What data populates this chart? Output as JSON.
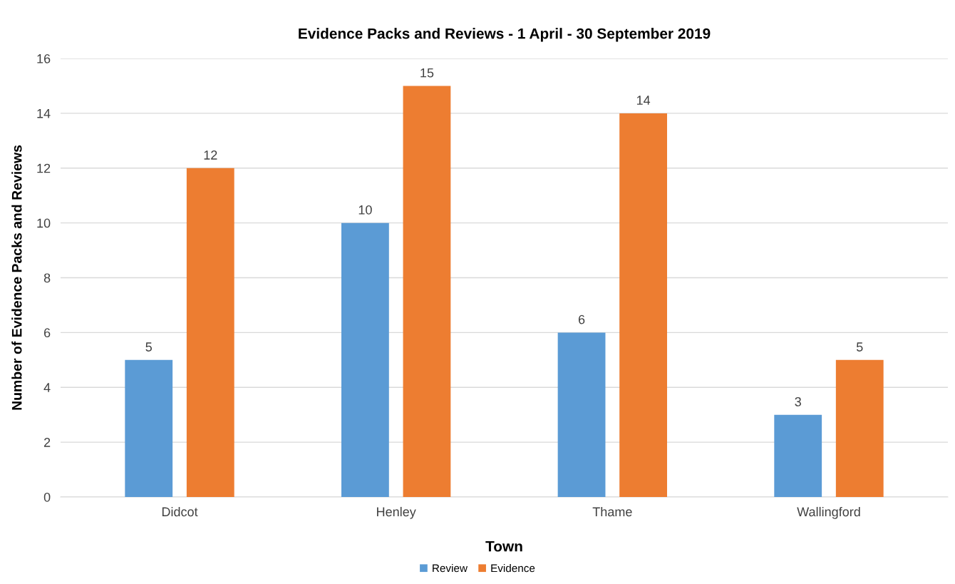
{
  "chart_data": {
    "type": "bar",
    "title": "Evidence Packs and Reviews - 1 April - 30 September 2019",
    "xlabel": "Town",
    "ylabel": "Number of Evidence Packs and Reviews",
    "categories": [
      "Didcot",
      "Henley",
      "Thame",
      "Wallingford"
    ],
    "series": [
      {
        "name": "Review",
        "color": "#5b9bd5",
        "values": [
          5,
          10,
          6,
          3
        ]
      },
      {
        "name": "Evidence",
        "color": "#ed7d31",
        "values": [
          12,
          15,
          14,
          5
        ]
      }
    ],
    "ylim": [
      0,
      16
    ],
    "yticks": [
      0,
      2,
      4,
      6,
      8,
      10,
      12,
      14,
      16
    ],
    "grid": "y",
    "legend": "bottom",
    "data_labels": true
  }
}
